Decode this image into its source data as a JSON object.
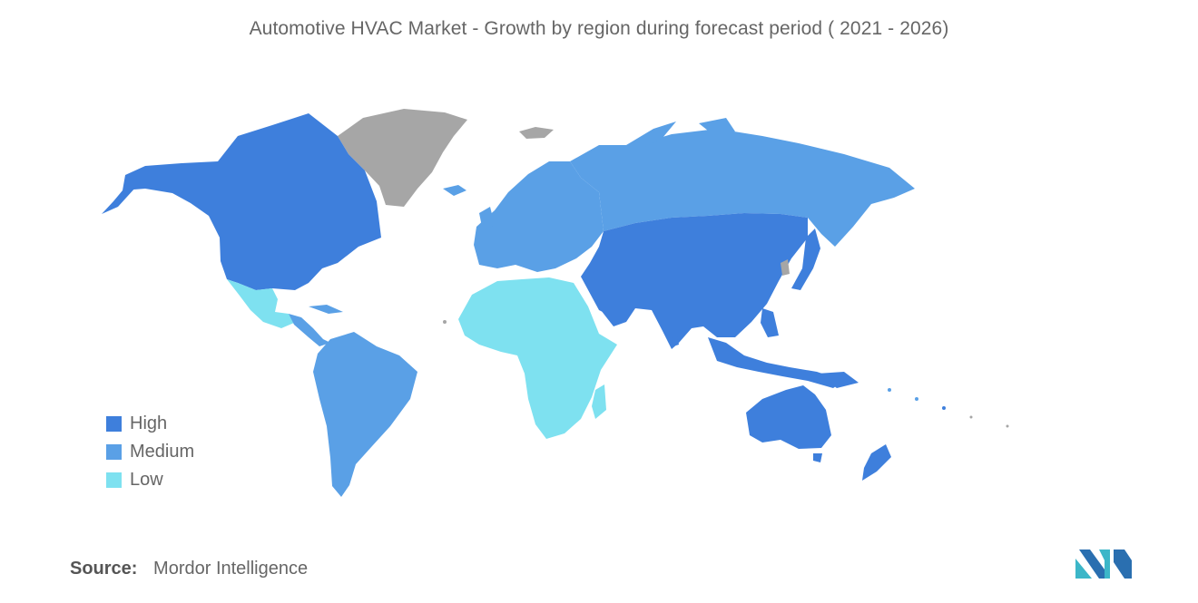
{
  "title": "Automotive HVAC Market - Growth by region during forecast period ( 2021 - 2026)",
  "legend": {
    "items": [
      {
        "label": "High",
        "color": "#3e7fdc"
      },
      {
        "label": "Medium",
        "color": "#5aa0e6"
      },
      {
        "label": "Low",
        "color": "#7ee1f0"
      }
    ]
  },
  "no_data_color": "#a6a6a6",
  "regions": [
    {
      "name": "North America",
      "level": "High"
    },
    {
      "name": "Asia-Pacific",
      "level": "High"
    },
    {
      "name": "Middle East",
      "level": "High"
    },
    {
      "name": "Europe",
      "level": "Medium"
    },
    {
      "name": "Russia",
      "level": "Medium"
    },
    {
      "name": "South America",
      "level": "Medium"
    },
    {
      "name": "Central America",
      "level": "Medium"
    },
    {
      "name": "Mexico",
      "level": "Low"
    },
    {
      "name": "Africa",
      "level": "Low"
    }
  ],
  "source": {
    "key": "Source:",
    "value": "Mordor Intelligence"
  },
  "logo": {
    "icon": "mordor-intelligence-logo"
  }
}
